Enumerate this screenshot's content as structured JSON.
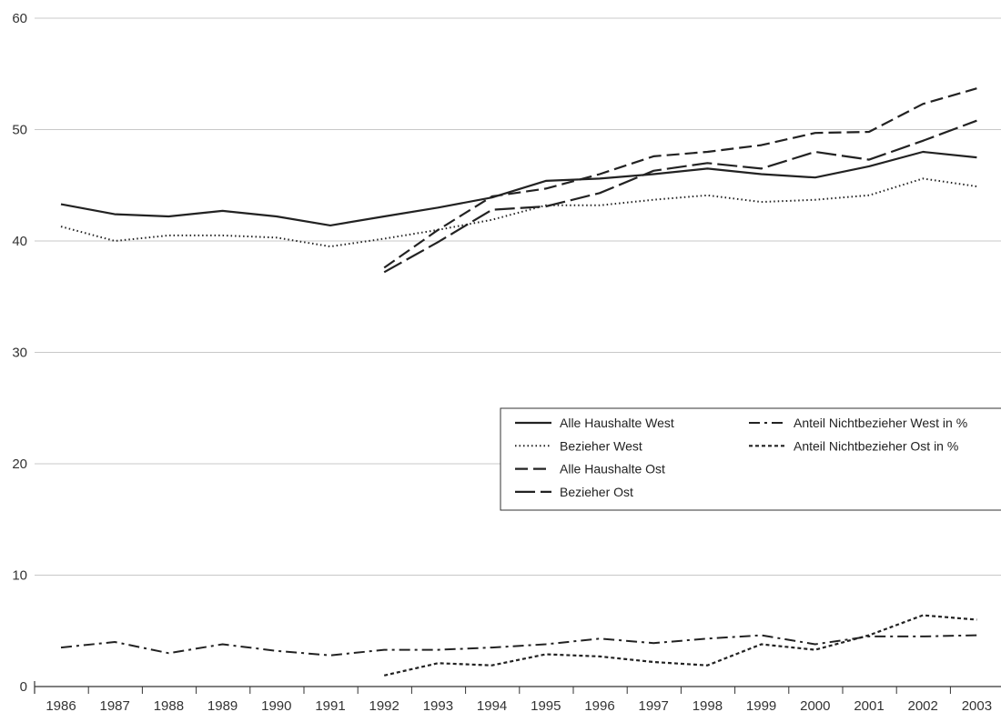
{
  "chart_data": {
    "type": "line",
    "x": [
      "1986",
      "1987",
      "1988",
      "1989",
      "1990",
      "1991",
      "1992",
      "1993",
      "1994",
      "1995",
      "1996",
      "1997",
      "1998",
      "1999",
      "2000",
      "2001",
      "2002",
      "2003"
    ],
    "ylim": [
      0,
      60
    ],
    "yticks": [
      0,
      10,
      20,
      30,
      40,
      50,
      60
    ],
    "grid": true,
    "legend": "center-right",
    "colors": {
      "line": "#222222",
      "grid": "#c8c8c8",
      "axis": "#333333"
    },
    "series": [
      {
        "name": "Alle Haushalte West",
        "dash": "solid",
        "values": [
          43.3,
          42.4,
          42.2,
          42.7,
          42.2,
          41.4,
          42.2,
          43.0,
          43.9,
          45.4,
          45.6,
          46.0,
          46.5,
          46.0,
          45.7,
          46.7,
          48.0,
          47.5
        ]
      },
      {
        "name": "Bezieher West",
        "dash": "dotted",
        "values": [
          41.3,
          40.0,
          40.5,
          40.5,
          40.3,
          39.5,
          40.2,
          41.0,
          41.9,
          43.2,
          43.2,
          43.7,
          44.1,
          43.5,
          43.7,
          44.1,
          45.6,
          44.9
        ]
      },
      {
        "name": "Alle Haushalte Ost",
        "dash": "dashed",
        "values": [
          null,
          null,
          null,
          null,
          null,
          null,
          37.6,
          41.0,
          44.0,
          44.7,
          46.0,
          47.6,
          48.0,
          48.6,
          49.7,
          49.8,
          52.3,
          53.7
        ]
      },
      {
        "name": "Bezieher Ost",
        "dash": "longdash",
        "values": [
          null,
          null,
          null,
          null,
          null,
          null,
          37.2,
          39.9,
          42.8,
          43.1,
          44.3,
          46.3,
          47.0,
          46.5,
          48.0,
          47.3,
          49.0,
          50.8
        ]
      },
      {
        "name": "Anteil Nichtbezieher West in %",
        "dash": "dashdot",
        "values": [
          3.5,
          4.0,
          3.0,
          3.8,
          3.2,
          2.8,
          3.3,
          3.3,
          3.5,
          3.8,
          4.3,
          3.9,
          4.3,
          4.6,
          3.8,
          4.5,
          4.5,
          4.6
        ]
      },
      {
        "name": "Anteil Nichtbezieher Ost in %",
        "dash": "shortdash",
        "values": [
          null,
          null,
          null,
          null,
          null,
          null,
          1.0,
          2.1,
          1.9,
          2.9,
          2.7,
          2.2,
          1.9,
          3.8,
          3.3,
          4.6,
          6.4,
          6.0
        ]
      }
    ]
  }
}
